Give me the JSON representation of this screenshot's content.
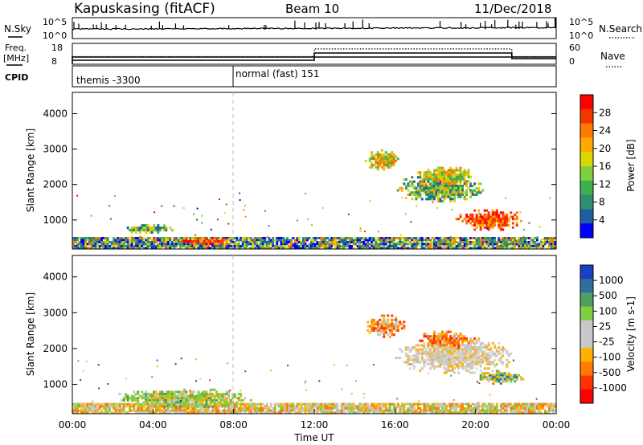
{
  "header": {
    "station": "Kapuskasing (fitACF)",
    "beam": "Beam 10",
    "date": "11/Dec/2018"
  },
  "noise_panel": {
    "left_label": "N.Sky",
    "right_label": "N.Search",
    "left_ticks": [
      "10^5",
      "10^0"
    ],
    "right_ticks": [
      "10^5",
      "10^0"
    ]
  },
  "freq_panel": {
    "left_label_1": "Freq.",
    "left_label_2": "[MHz]",
    "right_label": "Nave",
    "left_ticks": [
      "18",
      "8"
    ],
    "right_ticks": [
      "60",
      "0"
    ],
    "freq_value": 8,
    "nave_steps": [
      {
        "from_h": 0.0,
        "to_h": 12.0,
        "nave": 22
      },
      {
        "from_h": 12.0,
        "to_h": 21.8,
        "nave": 44
      },
      {
        "from_h": 21.8,
        "to_h": 24.0,
        "nave": 22
      }
    ]
  },
  "cpid_panel": {
    "label": "CPID",
    "modes": [
      {
        "name": "themis -3300",
        "start_h": 0.0
      },
      {
        "name": "normal (fast) 151",
        "start_h": 8.0
      }
    ]
  },
  "chart_data": [
    {
      "type": "heatmap",
      "title": "",
      "ylabel": "Slant Range [km]",
      "xlabel": "",
      "xlim_hours": [
        0,
        24
      ],
      "ylim": [
        180,
        4600
      ],
      "yticks": [
        "1000",
        "2000",
        "3000",
        "4000"
      ],
      "colorbar": {
        "label": "Power [dB]",
        "ticks": [
          "28",
          "24",
          "20",
          "16",
          "12",
          "8",
          "4"
        ],
        "colors": [
          "#ff0000",
          "#f53500",
          "#ff7a00",
          "#ffa800",
          "#d7d800",
          "#7fd040",
          "#3fb050",
          "#2f8f70",
          "#1f5fa0",
          "#0000ff"
        ]
      },
      "regions": [
        {
          "t0": 0.0,
          "t1": 24.0,
          "r0": 180,
          "r1": 520,
          "value": "low",
          "note": "near-range band"
        },
        {
          "t0": 5.0,
          "t1": 8.3,
          "r0": 300,
          "r1": 500,
          "value": "high"
        },
        {
          "t0": 2.5,
          "t1": 5.0,
          "r0": 620,
          "r1": 880,
          "value": "mid"
        },
        {
          "t0": 14.5,
          "t1": 16.3,
          "r0": 2400,
          "r1": 3000,
          "value": "mid-high"
        },
        {
          "t0": 16.0,
          "t1": 20.5,
          "r0": 1500,
          "r1": 2300,
          "value": "mid"
        },
        {
          "t0": 17.0,
          "t1": 20.0,
          "r0": 2000,
          "r1": 2500,
          "value": "mid-high"
        },
        {
          "t0": 19.0,
          "t1": 22.5,
          "r0": 700,
          "r1": 1300,
          "value": "high"
        }
      ]
    },
    {
      "type": "heatmap",
      "title": "",
      "ylabel": "Slant Range [km]",
      "xlabel": "Time UT",
      "xlim_hours": [
        0,
        24
      ],
      "ylim": [
        180,
        4600
      ],
      "yticks": [
        "1000",
        "2000",
        "3000",
        "4000"
      ],
      "xticks": [
        "00:00",
        "04:00",
        "08:00",
        "12:00",
        "16:00",
        "20:00",
        "00:00"
      ],
      "colorbar": {
        "label": "Velocity [m s-1]",
        "ticks": [
          "1000",
          "500",
          "100",
          "25",
          "-25",
          "-100",
          "-500",
          "-1000"
        ],
        "colors": [
          "#1a3fbf",
          "#2f6f9f",
          "#4f9f5f",
          "#7fd040",
          "#c8c8c8",
          "#c8c8c8",
          "#ffb000",
          "#ff7a00",
          "#ff3300",
          "#ff0000"
        ]
      },
      "regions": [
        {
          "t0": 0.0,
          "t1": 24.0,
          "r0": 180,
          "r1": 480,
          "value": "low-velocity",
          "note": "near-range band"
        },
        {
          "t0": 2.0,
          "t1": 9.0,
          "r0": 350,
          "r1": 880,
          "value": "100"
        },
        {
          "t0": 14.5,
          "t1": 16.5,
          "r0": 2300,
          "r1": 2950,
          "value": "-500"
        },
        {
          "t0": 16.0,
          "t1": 22.0,
          "r0": 1300,
          "r1": 2300,
          "value": "-25"
        },
        {
          "t0": 17.0,
          "t1": 20.0,
          "r0": 2000,
          "r1": 2500,
          "value": "-500"
        },
        {
          "t0": 20.0,
          "t1": 22.5,
          "r0": 1000,
          "r1": 1400,
          "value": "500"
        }
      ]
    }
  ]
}
